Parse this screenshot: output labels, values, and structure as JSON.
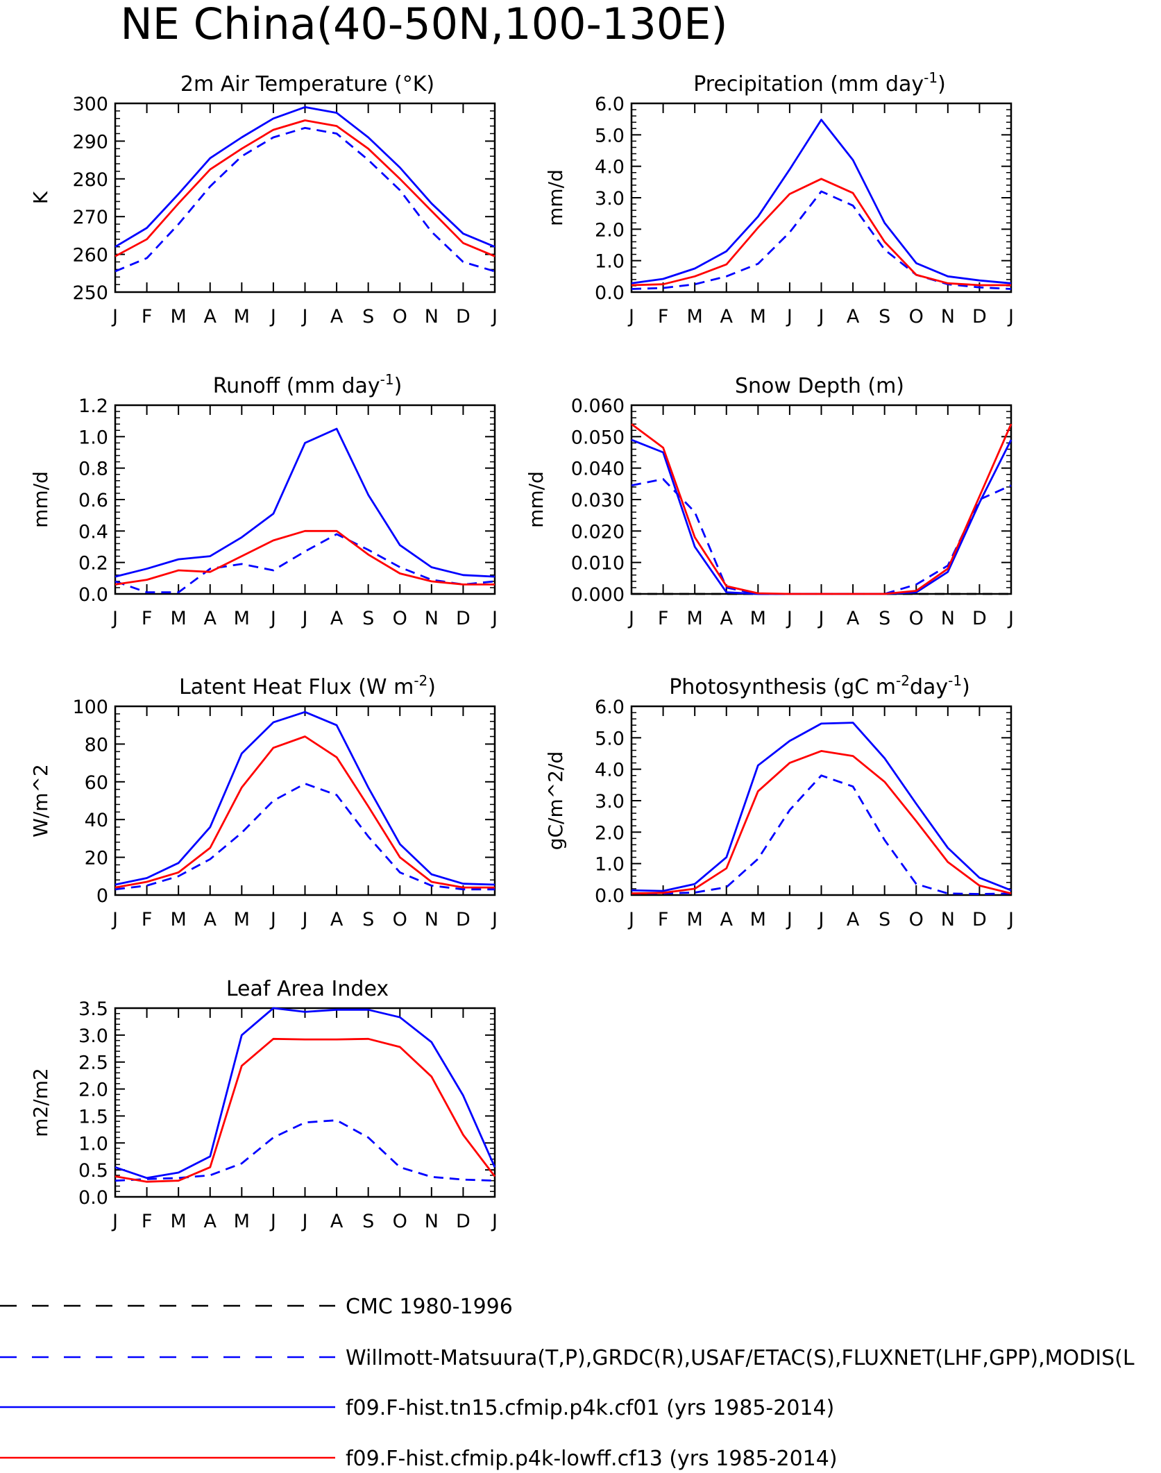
{
  "title": "NE China(40-50N,100-130E)",
  "months": [
    "J",
    "F",
    "M",
    "A",
    "M",
    "J",
    "J",
    "A",
    "S",
    "O",
    "N",
    "D",
    "J"
  ],
  "legend": [
    {
      "label": "CMC 1980-1996",
      "color": "#000000",
      "dashed": true
    },
    {
      "label": "Willmott-Matsuura(T,P),GRDC(R),USAF/ETAC(S),FLUXNET(LHF,GPP),MODIS(L",
      "color": "#0000ff",
      "dashed": true
    },
    {
      "label": "f09.F-hist.tn15.cfmip.p4k.cf01 (yrs 1985-2014)",
      "color": "#0000ff",
      "dashed": false
    },
    {
      "label": "f09.F-hist.cfmip.p4k-lowff.cf13 (yrs 1985-2014)",
      "color": "#ff0000",
      "dashed": false
    }
  ],
  "chart_data": [
    {
      "type": "line",
      "title": "2m Air Temperature (°K)",
      "ylabel": "K",
      "ylim": [
        250,
        300
      ],
      "yticks": [
        "250",
        "260",
        "270",
        "280",
        "290",
        "300"
      ],
      "categories": [
        "J",
        "F",
        "M",
        "A",
        "M",
        "J",
        "J",
        "A",
        "S",
        "O",
        "N",
        "D",
        "J"
      ],
      "series": [
        {
          "values": [
            255.5,
            259,
            268,
            278,
            286,
            291,
            293.5,
            292,
            285,
            277,
            266,
            258,
            255.5
          ],
          "color": "#0000ff",
          "dashed": true
        },
        {
          "values": [
            262,
            267,
            276,
            285.5,
            291,
            296,
            299,
            297.5,
            291,
            283,
            273.5,
            265.5,
            262
          ],
          "color": "#0000ff",
          "dashed": false
        },
        {
          "values": [
            259.5,
            264,
            273.5,
            282.5,
            288,
            293,
            295.5,
            294,
            288,
            280,
            271.5,
            263,
            259.5
          ],
          "color": "#ff0000",
          "dashed": false
        }
      ]
    },
    {
      "type": "line",
      "title": "Precipitation (mm day",
      "title_sup": "-1",
      "title_end": ")",
      "ylabel": "mm/d",
      "ylim": [
        0,
        6
      ],
      "yticks": [
        "0.0",
        "1.0",
        "2.0",
        "3.0",
        "4.0",
        "5.0",
        "6.0"
      ],
      "categories": [
        "J",
        "F",
        "M",
        "A",
        "M",
        "J",
        "J",
        "A",
        "S",
        "O",
        "N",
        "D",
        "J"
      ],
      "series": [
        {
          "values": [
            0.1,
            0.13,
            0.25,
            0.5,
            0.9,
            1.9,
            3.2,
            2.75,
            1.35,
            0.55,
            0.25,
            0.15,
            0.1
          ],
          "color": "#0000ff",
          "dashed": true
        },
        {
          "values": [
            0.28,
            0.42,
            0.75,
            1.3,
            2.4,
            3.9,
            5.48,
            4.2,
            2.2,
            0.92,
            0.5,
            0.37,
            0.28
          ],
          "color": "#0000ff",
          "dashed": false
        },
        {
          "values": [
            0.22,
            0.25,
            0.5,
            0.88,
            2.05,
            3.12,
            3.6,
            3.15,
            1.6,
            0.55,
            0.28,
            0.22,
            0.22
          ],
          "color": "#ff0000",
          "dashed": false
        }
      ]
    },
    {
      "type": "line",
      "title": "Runoff (mm day",
      "title_sup": "-1",
      "title_end": ")",
      "ylabel": "mm/d",
      "ylim": [
        0,
        1.2
      ],
      "yticks": [
        "0.0",
        "0.2",
        "0.4",
        "0.6",
        "0.8",
        "1.0",
        "1.2"
      ],
      "categories": [
        "J",
        "F",
        "M",
        "A",
        "M",
        "J",
        "J",
        "A",
        "S",
        "O",
        "N",
        "D",
        "J"
      ],
      "series": [
        {
          "values": [
            0.08,
            0.01,
            0.01,
            0.16,
            0.19,
            0.15,
            0.27,
            0.38,
            0.28,
            0.17,
            0.09,
            0.06,
            0.08
          ],
          "color": "#0000ff",
          "dashed": true
        },
        {
          "values": [
            0.11,
            0.16,
            0.22,
            0.24,
            0.36,
            0.51,
            0.96,
            1.05,
            0.63,
            0.31,
            0.17,
            0.12,
            0.11
          ],
          "color": "#0000ff",
          "dashed": false
        },
        {
          "values": [
            0.06,
            0.09,
            0.15,
            0.14,
            0.24,
            0.34,
            0.4,
            0.4,
            0.25,
            0.13,
            0.08,
            0.06,
            0.06
          ],
          "color": "#ff0000",
          "dashed": false
        }
      ]
    },
    {
      "type": "line",
      "title": "Snow Depth (m)",
      "ylabel": "mm/d",
      "ylim": [
        0,
        0.06
      ],
      "yticks": [
        "0.000",
        "0.010",
        "0.020",
        "0.030",
        "0.040",
        "0.050",
        "0.060"
      ],
      "categories": [
        "J",
        "F",
        "M",
        "A",
        "M",
        "J",
        "J",
        "A",
        "S",
        "O",
        "N",
        "D",
        "J"
      ],
      "series": [
        {
          "values": [
            0,
            0,
            0,
            0,
            0,
            0,
            0,
            0,
            0,
            0,
            0,
            0,
            0
          ],
          "color": "#000000",
          "dashed": true
        },
        {
          "values": [
            0.0345,
            0.0365,
            0.026,
            0.002,
            0,
            0,
            0,
            0,
            0,
            0.003,
            0.009,
            0.03,
            0.0345
          ],
          "color": "#0000ff",
          "dashed": true
        },
        {
          "values": [
            0.049,
            0.045,
            0.015,
            0.0005,
            0,
            0,
            0,
            0,
            0,
            0.0005,
            0.007,
            0.029,
            0.049
          ],
          "color": "#0000ff",
          "dashed": false
        },
        {
          "values": [
            0.054,
            0.0465,
            0.018,
            0.0025,
            0.0002,
            0,
            0,
            0,
            0,
            0.001,
            0.008,
            0.031,
            0.054
          ],
          "color": "#ff0000",
          "dashed": false
        }
      ]
    },
    {
      "type": "line",
      "title": "Latent Heat Flux (W m",
      "title_sup": "-2",
      "title_end": ")",
      "ylabel": "W/m^2",
      "ylim": [
        0,
        100
      ],
      "yticks": [
        "0",
        "20",
        "40",
        "60",
        "80",
        "100"
      ],
      "categories": [
        "J",
        "F",
        "M",
        "A",
        "M",
        "J",
        "J",
        "A",
        "S",
        "O",
        "N",
        "D",
        "J"
      ],
      "series": [
        {
          "values": [
            3,
            5,
            10,
            19,
            33,
            50,
            59,
            53,
            31,
            12,
            5,
            3,
            3
          ],
          "color": "#0000ff",
          "dashed": true
        },
        {
          "values": [
            5.5,
            9,
            17,
            36,
            75,
            91.5,
            97,
            90,
            57,
            27,
            11,
            6,
            5.5
          ],
          "color": "#0000ff",
          "dashed": false
        },
        {
          "values": [
            4,
            7,
            12,
            25,
            57,
            78,
            84,
            73,
            47,
            20,
            7,
            4,
            4
          ],
          "color": "#ff0000",
          "dashed": false
        }
      ]
    },
    {
      "type": "line",
      "title": "Photosynthesis (gC m",
      "title_sup": "-2",
      "title_mid": "day",
      "title_sup2": "-1",
      "title_end": ")",
      "ylabel": "gC/m^2/d",
      "ylim": [
        0,
        6
      ],
      "yticks": [
        "0.0",
        "1.0",
        "2.0",
        "3.0",
        "4.0",
        "5.0",
        "6.0"
      ],
      "categories": [
        "J",
        "F",
        "M",
        "A",
        "M",
        "J",
        "J",
        "A",
        "S",
        "O",
        "N",
        "D",
        "J"
      ],
      "series": [
        {
          "values": [
            0.05,
            0.05,
            0.08,
            0.25,
            1.15,
            2.7,
            3.8,
            3.45,
            1.75,
            0.35,
            0.05,
            0.03,
            0.05
          ],
          "color": "#0000ff",
          "dashed": true
        },
        {
          "values": [
            0.15,
            0.13,
            0.35,
            1.2,
            4.12,
            4.9,
            5.45,
            5.48,
            4.35,
            2.9,
            1.5,
            0.55,
            0.15
          ],
          "color": "#0000ff",
          "dashed": false
        },
        {
          "values": [
            0.05,
            0.07,
            0.2,
            0.85,
            3.3,
            4.2,
            4.58,
            4.42,
            3.6,
            2.35,
            1.05,
            0.3,
            0.05
          ],
          "color": "#ff0000",
          "dashed": false
        }
      ]
    },
    {
      "type": "line",
      "title": "Leaf Area Index",
      "ylabel": "m2/m2",
      "ylim": [
        0,
        3.5
      ],
      "yticks": [
        "0.0",
        "0.5",
        "1.0",
        "1.5",
        "2.0",
        "2.5",
        "3.0",
        "3.5"
      ],
      "categories": [
        "J",
        "F",
        "M",
        "A",
        "M",
        "J",
        "J",
        "A",
        "S",
        "O",
        "N",
        "D",
        "J"
      ],
      "series": [
        {
          "values": [
            0.3,
            0.33,
            0.35,
            0.4,
            0.62,
            1.1,
            1.38,
            1.42,
            1.1,
            0.55,
            0.37,
            0.32,
            0.3
          ],
          "color": "#0000ff",
          "dashed": true
        },
        {
          "values": [
            0.55,
            0.35,
            0.45,
            0.75,
            3.0,
            3.5,
            3.43,
            3.47,
            3.47,
            3.33,
            2.87,
            1.88,
            0.55
          ],
          "color": "#0000ff",
          "dashed": false
        },
        {
          "values": [
            0.38,
            0.28,
            0.3,
            0.55,
            2.43,
            2.93,
            2.92,
            2.92,
            2.93,
            2.78,
            2.23,
            1.15,
            0.38
          ],
          "color": "#ff0000",
          "dashed": false
        }
      ]
    }
  ]
}
